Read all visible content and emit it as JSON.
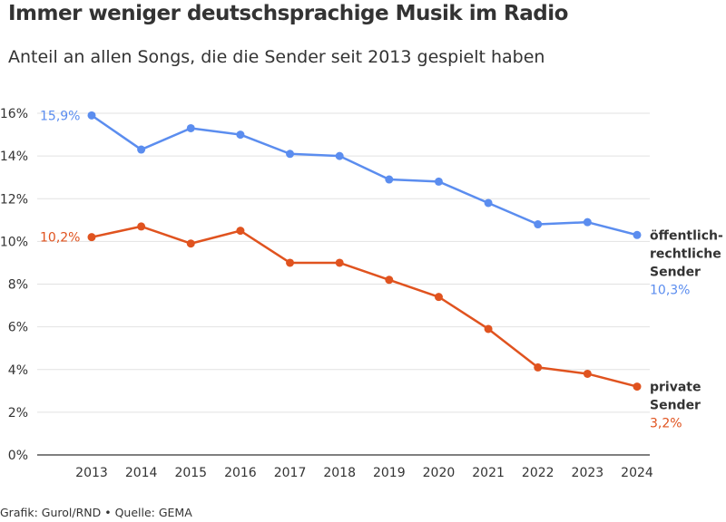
{
  "title": "Immer weniger deutschsprachige Musik im Radio",
  "subtitle": "Anteil an allen Songs, die die Sender seit 2013 gespielt haben",
  "footer": "Grafik: Gurol/RND • Quelle: GEMA",
  "chart_data": {
    "type": "line",
    "x": [
      2013,
      2014,
      2015,
      2016,
      2017,
      2018,
      2019,
      2020,
      2021,
      2022,
      2023,
      2024
    ],
    "y_ticks": [
      "0%",
      "2%",
      "4%",
      "6%",
      "8%",
      "10%",
      "12%",
      "14%",
      "16%"
    ],
    "ylim": [
      0,
      16
    ],
    "grid": true,
    "series": [
      {
        "name_lines": [
          "öffentlich-",
          "rechtliche",
          "Sender"
        ],
        "color": "#5b8def",
        "values": [
          15.9,
          14.3,
          15.3,
          15.0,
          14.1,
          14.0,
          12.9,
          12.8,
          11.8,
          10.8,
          10.9,
          10.3
        ],
        "start_label": "15,9%",
        "end_label": "10,3%"
      },
      {
        "name_lines": [
          "private",
          "Sender"
        ],
        "color": "#e0531f",
        "values": [
          10.2,
          10.7,
          9.9,
          10.5,
          9.0,
          9.0,
          8.2,
          7.4,
          5.9,
          4.1,
          3.8,
          3.2
        ],
        "start_label": "10,2%",
        "end_label": "3,2%"
      }
    ]
  }
}
